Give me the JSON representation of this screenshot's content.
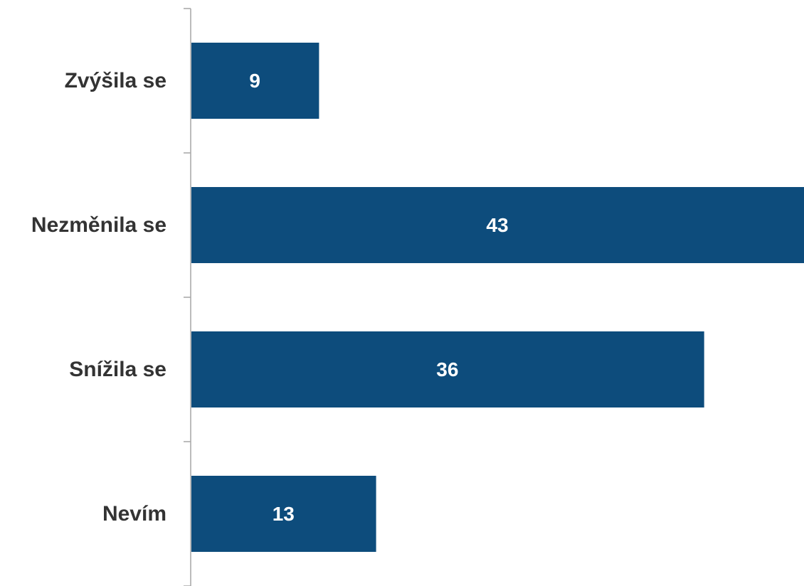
{
  "chart_data": {
    "type": "bar",
    "orientation": "horizontal",
    "categories": [
      "Zvýšila se",
      "Nezměnila se",
      "Snížila se",
      "Nevím"
    ],
    "values": [
      9,
      43,
      36,
      13
    ],
    "data_labels": [
      "9",
      "43",
      "36",
      "13"
    ],
    "xlim": [
      0,
      43
    ],
    "grid": false,
    "legend": "none",
    "bar_color": "#0d4c7c",
    "axis_color": "#a6a6a6"
  }
}
